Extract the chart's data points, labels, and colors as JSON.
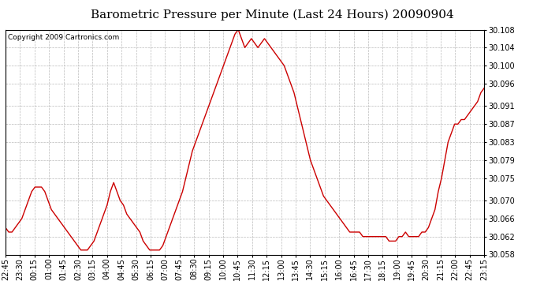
{
  "title": "Barometric Pressure per Minute (Last 24 Hours) 20090904",
  "copyright": "Copyright 2009 Cartronics.com",
  "line_color": "#cc0000",
  "background_color": "#ffffff",
  "grid_color": "#bbbbbb",
  "ylim": [
    30.058,
    30.108
  ],
  "yticks": [
    30.058,
    30.062,
    30.066,
    30.07,
    30.075,
    30.079,
    30.083,
    30.087,
    30.091,
    30.096,
    30.1,
    30.104,
    30.108
  ],
  "xtick_labels": [
    "22:45",
    "23:30",
    "00:15",
    "01:00",
    "01:45",
    "02:30",
    "03:15",
    "04:00",
    "04:45",
    "05:30",
    "06:15",
    "07:00",
    "07:45",
    "08:30",
    "09:15",
    "10:00",
    "10:45",
    "11:30",
    "12:15",
    "13:00",
    "13:45",
    "14:30",
    "15:15",
    "16:00",
    "16:45",
    "17:30",
    "18:15",
    "19:00",
    "19:45",
    "20:30",
    "21:15",
    "22:00",
    "22:45",
    "23:15"
  ],
  "pressure_values": [
    30.064,
    30.063,
    30.063,
    30.064,
    30.065,
    30.066,
    30.068,
    30.07,
    30.072,
    30.073,
    30.073,
    30.073,
    30.072,
    30.07,
    30.068,
    30.067,
    30.066,
    30.065,
    30.064,
    30.063,
    30.062,
    30.061,
    30.06,
    30.059,
    30.059,
    30.059,
    30.06,
    30.061,
    30.063,
    30.065,
    30.067,
    30.069,
    30.072,
    30.074,
    30.072,
    30.07,
    30.069,
    30.067,
    30.066,
    30.065,
    30.064,
    30.063,
    30.061,
    30.06,
    30.059,
    30.059,
    30.059,
    30.059,
    30.06,
    30.062,
    30.064,
    30.066,
    30.068,
    30.07,
    30.072,
    30.075,
    30.078,
    30.081,
    30.083,
    30.085,
    30.087,
    30.089,
    30.091,
    30.093,
    30.095,
    30.097,
    30.099,
    30.101,
    30.103,
    30.105,
    30.107,
    30.108,
    30.106,
    30.104,
    30.105,
    30.106,
    30.105,
    30.104,
    30.105,
    30.106,
    30.105,
    30.104,
    30.103,
    30.102,
    30.101,
    30.1,
    30.098,
    30.096,
    30.094,
    30.091,
    30.088,
    30.085,
    30.082,
    30.079,
    30.077,
    30.075,
    30.073,
    30.071,
    30.07,
    30.069,
    30.068,
    30.067,
    30.066,
    30.065,
    30.064,
    30.063,
    30.063,
    30.063,
    30.063,
    30.062,
    30.062,
    30.062,
    30.062,
    30.062,
    30.062,
    30.062,
    30.062,
    30.061,
    30.061,
    30.061,
    30.062,
    30.062,
    30.063,
    30.062,
    30.062,
    30.062,
    30.062,
    30.063,
    30.063,
    30.064,
    30.066,
    30.068,
    30.072,
    30.075,
    30.079,
    30.083,
    30.085,
    30.087,
    30.087,
    30.088,
    30.088,
    30.089,
    30.09,
    30.091,
    30.092,
    30.094,
    30.095
  ],
  "title_fontsize": 11,
  "tick_fontsize": 7,
  "copyright_fontsize": 6.5,
  "fig_width": 6.9,
  "fig_height": 3.75,
  "dpi": 100
}
